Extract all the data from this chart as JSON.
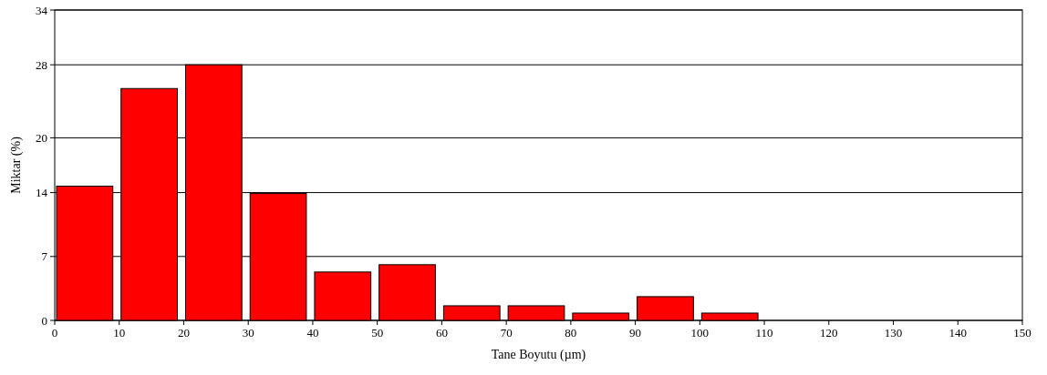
{
  "chart_data": {
    "type": "histogram",
    "xlabel": "Tane Boyutu (µm)",
    "ylabel": "Miktar (%)",
    "bins": [
      0,
      10,
      20,
      30,
      40,
      50,
      60,
      70,
      80,
      90,
      100,
      110
    ],
    "values": [
      14.7,
      25.4,
      28.0,
      13.9,
      5.3,
      6.1,
      1.6,
      1.6,
      0.8,
      2.6,
      0.8
    ],
    "color": "#ff0000",
    "xlim": [
      0,
      150
    ],
    "xticks": [
      0,
      10,
      20,
      30,
      40,
      50,
      60,
      70,
      80,
      90,
      100,
      110,
      120,
      130,
      140,
      150
    ],
    "ylim": [
      0,
      34
    ],
    "yticks": [
      0,
      7,
      14,
      20,
      28,
      34
    ],
    "grid": "y"
  }
}
